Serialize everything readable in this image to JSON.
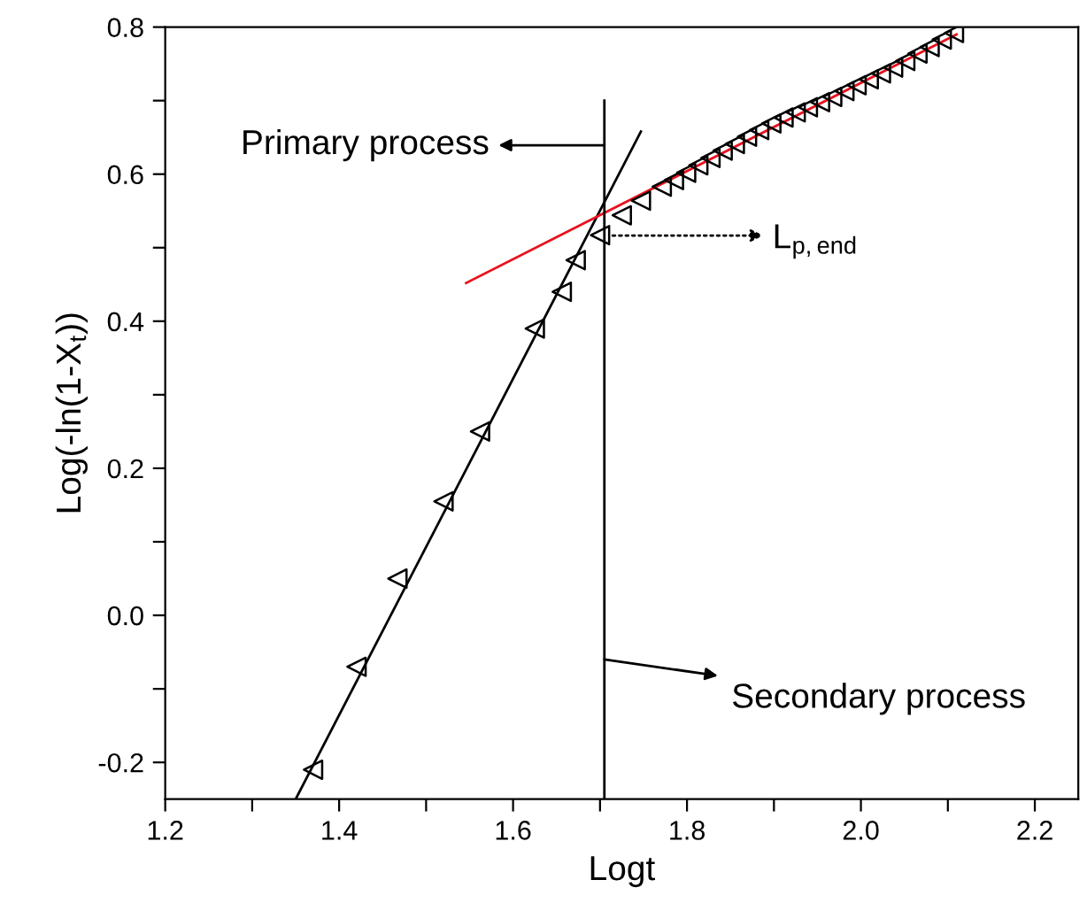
{
  "chart_data": {
    "type": "scatter",
    "xlabel": "Logt",
    "ylabel": "Log(-ln(1-X$_{t}$))",
    "xlim": [
      1.2,
      2.25
    ],
    "ylim": [
      -0.25,
      0.8
    ],
    "xticks": [
      1.2,
      {
        "value": 1.3,
        "label": null
      },
      1.4,
      {
        "value": 1.5,
        "label": null
      },
      1.6,
      {
        "value": 1.7,
        "label": null
      },
      1.8,
      {
        "value": 1.9,
        "label": null
      },
      {
        "value": 2,
        "label": "2.0"
      },
      {
        "value": 2.1,
        "label": null
      },
      2.2
    ],
    "yticks": [
      -0.2,
      {
        "value": -0.1,
        "label": null
      },
      {
        "value": 0,
        "label": "0.0"
      },
      {
        "value": 0.1,
        "label": null
      },
      0.2,
      {
        "value": 0.3,
        "label": null
      },
      0.4,
      {
        "value": 0.5,
        "label": null
      },
      0.6,
      {
        "value": 0.7,
        "label": null
      },
      0.8
    ],
    "grid": false,
    "legend": false,
    "series": [
      {
        "marker": "triangle",
        "color": "#000000",
        "x": [
          1.37,
          1.42,
          1.467,
          1.52,
          1.562,
          1.625,
          1.656,
          1.672,
          1.7,
          1.725,
          1.747,
          1.771,
          1.785,
          1.799,
          1.813,
          1.827,
          1.841,
          1.855,
          1.869,
          1.883,
          1.897,
          1.911,
          1.925,
          1.939,
          1.953,
          1.967,
          1.981,
          1.995,
          2.009,
          2.023,
          2.037,
          2.051,
          2.065,
          2.079,
          2.093,
          2.107
        ],
        "values": [
          -0.21,
          -0.07,
          0.05,
          0.155,
          0.25,
          0.39,
          0.44,
          0.483,
          0.517,
          0.544,
          0.564,
          0.583,
          0.592,
          0.602,
          0.612,
          0.622,
          0.632,
          0.641,
          0.651,
          0.66,
          0.669,
          0.677,
          0.684,
          0.691,
          0.698,
          0.705,
          0.713,
          0.721,
          0.729,
          0.737,
          0.745,
          0.754,
          0.764,
          0.773,
          0.783,
          0.792
        ]
      },
      {
        "type": "line",
        "marker": "none",
        "line_style": "solid",
        "color": "#000000",
        "x": [
          1.35,
          1.747
        ],
        "values": [
          -0.25,
          0.658
        ]
      },
      {
        "type": "line",
        "marker": "none",
        "line_style": "solid",
        "color": "#e8121e",
        "x": [
          1.546,
          2.11
        ],
        "values": [
          0.452,
          0.79
        ]
      },
      {
        "type": "line",
        "marker": "none",
        "line_style": "solid",
        "color": "#000000",
        "x": [
          1.705,
          1.705
        ],
        "values": [
          -0.25,
          0.7
        ]
      }
    ],
    "annotations": [
      "Primary process",
      "L$_{p,end}$",
      {
        "text": "Secondary process",
        "x": 1.705,
        "y": -0.06
      }
    ]
  }
}
